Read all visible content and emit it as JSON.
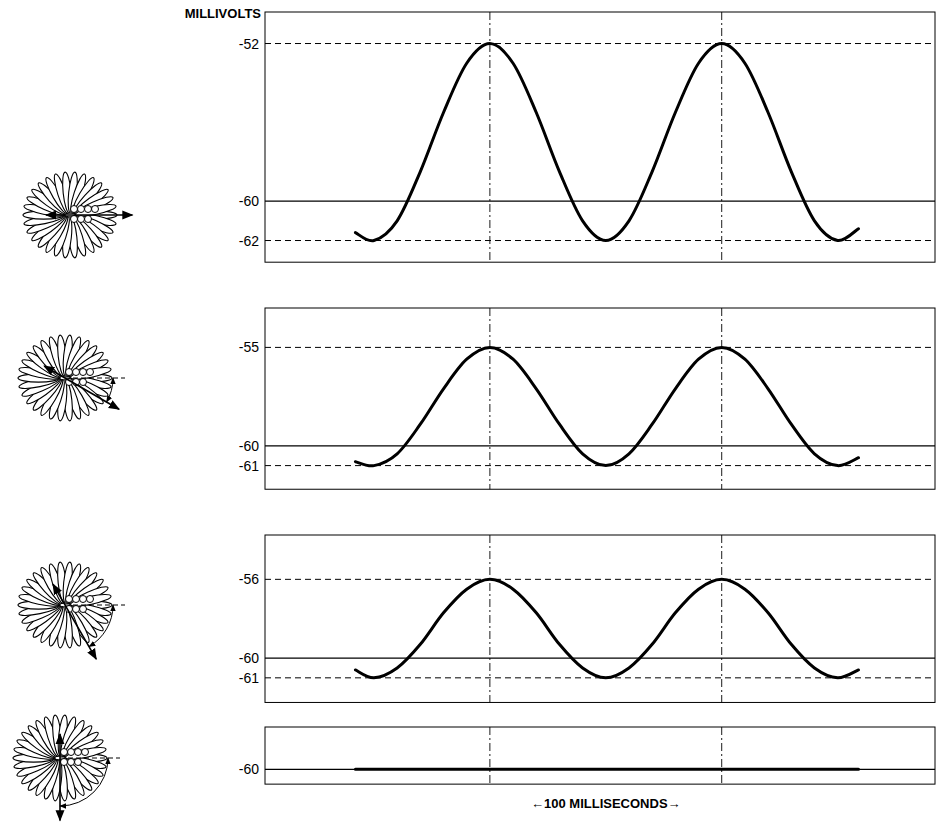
{
  "chart_data": [
    {
      "type": "line",
      "y_label": "MILLIVOLTS",
      "xlim": [
        -97,
        192
      ],
      "xticks": [
        0,
        100
      ],
      "tick_labels": "y",
      "ylim": [
        -63.1,
        -50.4
      ],
      "yticks": [
        -62,
        -60,
        -52
      ],
      "x": [
        -58,
        -50,
        -40,
        -30,
        -20,
        -10,
        0,
        10,
        20,
        30,
        40,
        50,
        60,
        70,
        80,
        90,
        100,
        110,
        120,
        130,
        140,
        150,
        159
      ],
      "series": [
        {
          "color": "#000000",
          "values": [
            -61.6,
            -62,
            -61,
            -58.5,
            -55.5,
            -53,
            -52,
            -53,
            -55.5,
            -58.5,
            -61,
            -62,
            -61,
            -58.5,
            -55.5,
            -53,
            -52,
            -53,
            -55.5,
            -58.5,
            -61,
            -62,
            -61.4
          ]
        }
      ]
    },
    {
      "type": "line",
      "xlim": [
        -97,
        192
      ],
      "xticks": [
        0,
        100
      ],
      "tick_labels": "y",
      "ylim": [
        -62.2,
        -53
      ],
      "yticks": [
        -61,
        -60,
        -55
      ],
      "x": [
        -58,
        -50,
        -40,
        -30,
        -20,
        -10,
        0,
        10,
        20,
        30,
        40,
        50,
        60,
        70,
        80,
        90,
        100,
        110,
        120,
        130,
        140,
        150,
        159
      ],
      "series": [
        {
          "color": "#000000",
          "values": [
            -60.8,
            -61,
            -60.4,
            -58.9,
            -57.1,
            -55.6,
            -55,
            -55.6,
            -57.1,
            -58.9,
            -60.4,
            -61,
            -60.4,
            -58.9,
            -57.1,
            -55.6,
            -55,
            -55.6,
            -57.1,
            -58.9,
            -60.4,
            -61,
            -60.6
          ]
        }
      ]
    },
    {
      "type": "line",
      "xlim": [
        -97,
        192
      ],
      "xticks": [
        0,
        100
      ],
      "tick_labels": "y",
      "ylim": [
        -62.25,
        -53.75
      ],
      "yticks": [
        -61,
        -60,
        -56
      ],
      "x": [
        -58,
        -50,
        -40,
        -30,
        -20,
        -10,
        0,
        10,
        20,
        30,
        40,
        50,
        60,
        70,
        80,
        90,
        100,
        110,
        120,
        130,
        140,
        150,
        159
      ],
      "series": [
        {
          "color": "#000000",
          "values": [
            -60.6,
            -61,
            -60.5,
            -59.3,
            -57.7,
            -56.5,
            -56,
            -56.5,
            -57.7,
            -59.3,
            -60.5,
            -61,
            -60.5,
            -59.3,
            -57.7,
            -56.5,
            -56,
            -56.5,
            -57.7,
            -59.3,
            -60.5,
            -61,
            -60.6
          ]
        }
      ]
    },
    {
      "type": "line",
      "x_label": "←100 MILLISECONDS→",
      "xlim": [
        -97,
        192
      ],
      "xticks": [
        0,
        100
      ],
      "tick_labels": "y",
      "ylim": [
        -60.75,
        -57.85
      ],
      "yticks": [
        -60
      ],
      "x": [
        -58,
        -50,
        -40,
        -30,
        -20,
        -10,
        0,
        10,
        20,
        30,
        40,
        50,
        60,
        70,
        80,
        90,
        100,
        110,
        120,
        130,
        140,
        150,
        159
      ],
      "series": [
        {
          "color": "#000000",
          "values": [
            -60,
            -60,
            -60,
            -60,
            -60,
            -60,
            -60,
            -60,
            -60,
            -60,
            -60,
            -60,
            -60,
            -60,
            -60,
            -60,
            -60,
            -60,
            -60,
            -60,
            -60,
            -60,
            -60
          ]
        }
      ]
    }
  ]
}
